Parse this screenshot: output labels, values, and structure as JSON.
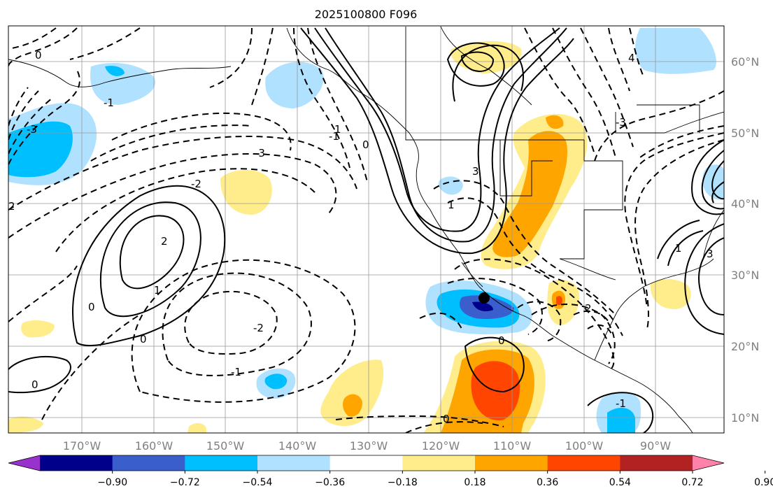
{
  "map": {
    "title": "2025100800 F096",
    "lat_labels": [
      "60°N",
      "50°N",
      "40°N",
      "30°N",
      "20°N",
      "10°N"
    ],
    "lon_labels": [
      "170°W",
      "160°W",
      "150°W",
      "140°W",
      "130°W",
      "120°W",
      "110°W",
      "100°W",
      "90°W"
    ],
    "contour_labels": [
      "0",
      "-1",
      "-2",
      "-3",
      "2",
      "1",
      "0",
      "-2",
      "-1",
      "0",
      "3",
      "1",
      "-1",
      "1",
      "0",
      "-3",
      "2",
      "4",
      "3",
      "-3",
      "2",
      "0",
      "0",
      "-1",
      "1",
      "0"
    ],
    "colorbar": {
      "tick_labels": [
        "−0.90",
        "−0.72",
        "−0.54",
        "−0.36",
        "−0.18",
        "0.18",
        "0.36",
        "0.54",
        "0.72",
        "0.90"
      ],
      "colors": [
        "#9932cc",
        "#00008b",
        "#3a5fcd",
        "#00bfff",
        "#b0e2ff",
        "#ffffff",
        "#ffec8b",
        "#ffa500",
        "#ff4500",
        "#b22222",
        "#ff82ab"
      ]
    },
    "marker_color": "#000000"
  }
}
